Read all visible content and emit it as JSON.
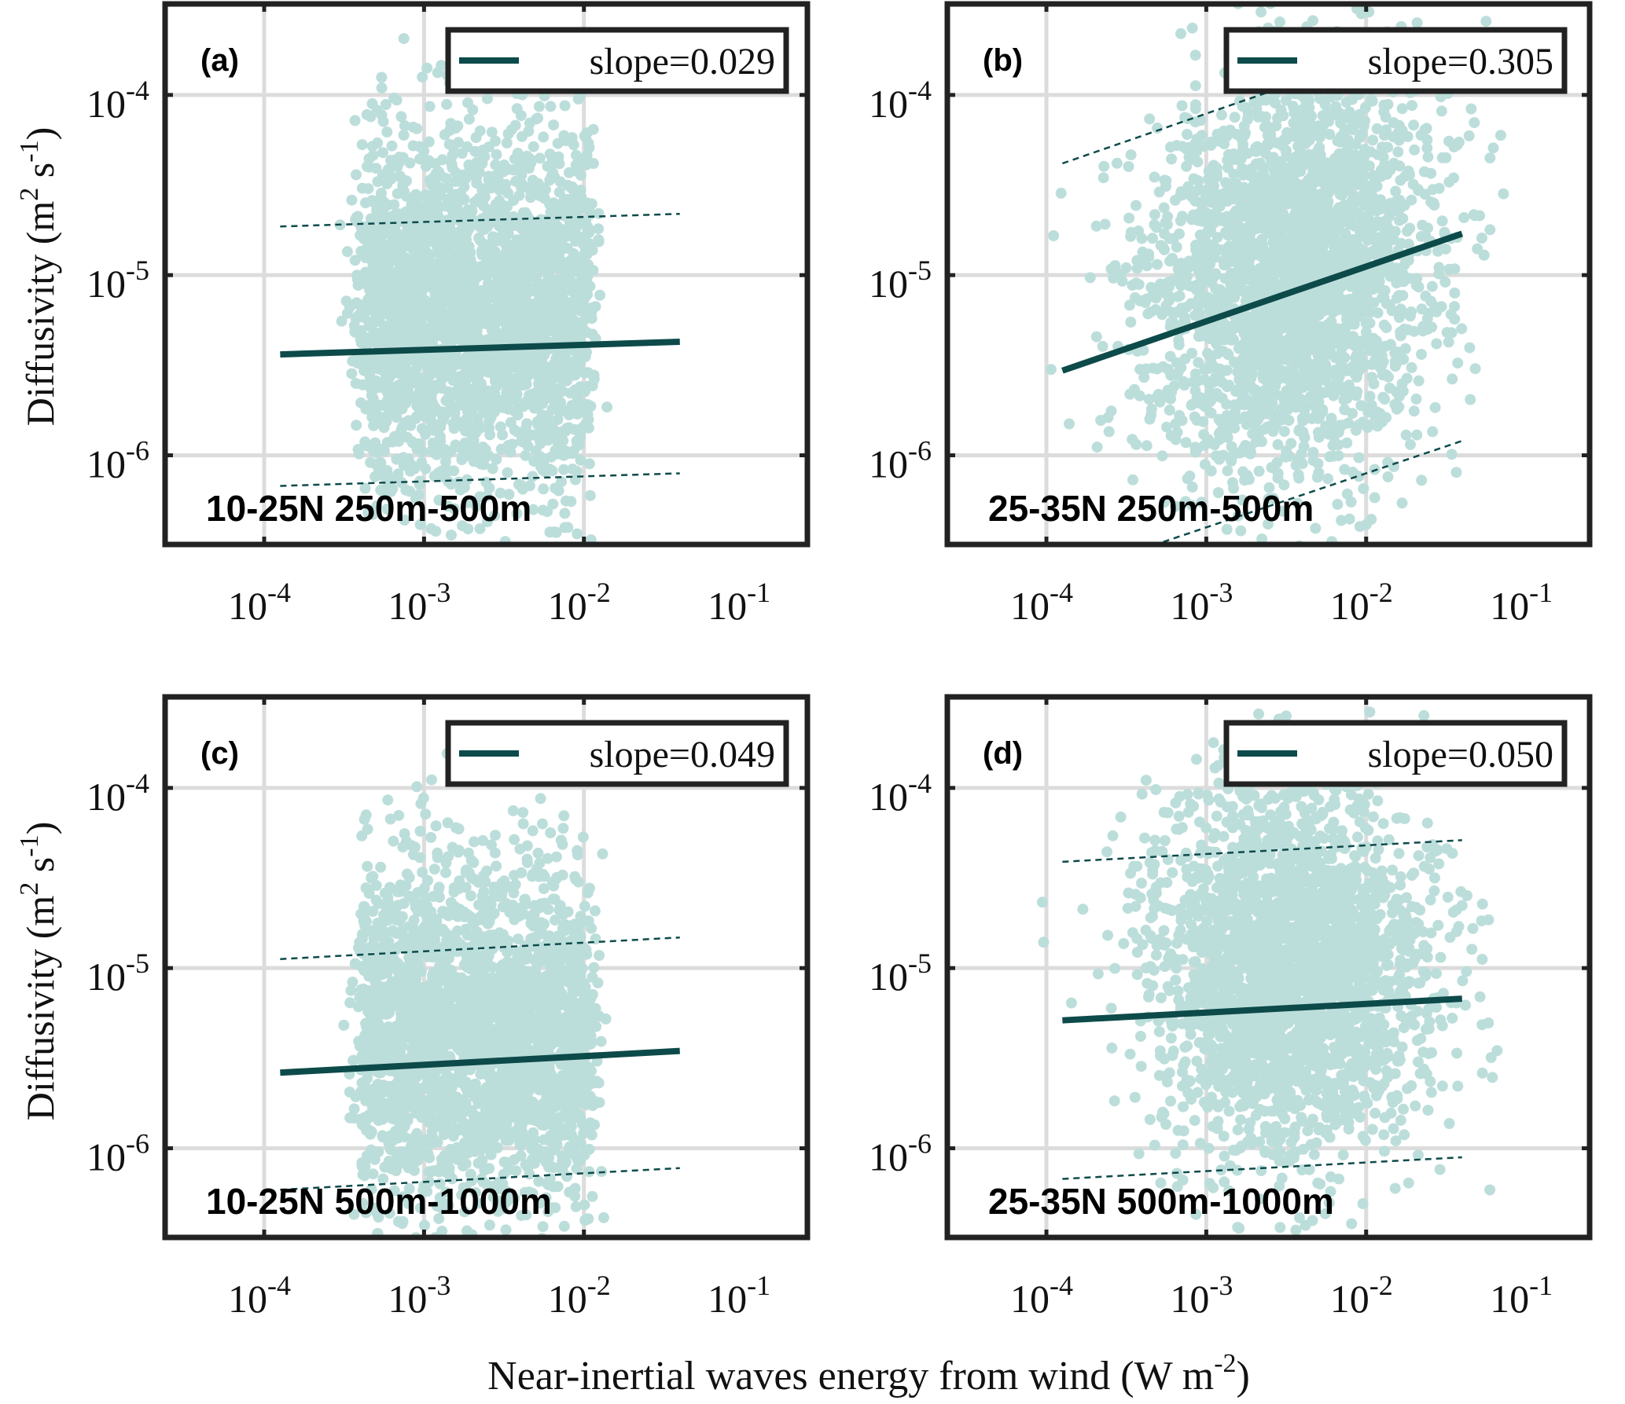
{
  "figure": {
    "ylabel_main": "Diffusivity (m",
    "ylabel_sup1": "2",
    "ylabel_mid": " s",
    "ylabel_sup2": "-1",
    "ylabel_end": ")",
    "xlabel_main": "Near-inertial waves energy from wind (W m",
    "xlabel_sup": "-2",
    "xlabel_end": ")"
  },
  "colors": {
    "scatter": "#bcdedb",
    "fit_line": "#0d4a4a",
    "grid": "#dcdcdc",
    "axes": "#222222"
  },
  "chart_data": [
    {
      "type": "scatter",
      "panel_label": "(a)",
      "region_label": "10-25N 250m-500m",
      "legend": "slope=0.029",
      "slope": 0.029,
      "xscale": "log",
      "yscale": "log",
      "xlim": [
        2.4e-05,
        0.25
      ],
      "ylim": [
        3.2e-07,
        0.00032
      ],
      "xticks": [
        "10-4",
        "10-3",
        "10-2",
        "10-1"
      ],
      "yticks": [
        "10-4",
        "10-5",
        "10-6"
      ],
      "x_cloud_log10": [
        -3.45,
        -1.9
      ],
      "y_cloud_log10": [
        -6.3,
        -4.05
      ],
      "fit": {
        "x_log10": [
          -3.9,
          -1.4
        ],
        "y_log10": [
          -5.44,
          -5.37
        ]
      },
      "upper_bound": {
        "x_log10": [
          -3.9,
          -1.4
        ],
        "y_log10": [
          -4.73,
          -4.66
        ]
      },
      "lower_bound": {
        "x_log10": [
          -3.9,
          -1.4
        ],
        "y_log10": [
          -6.17,
          -6.1
        ]
      },
      "grid": true,
      "legend_position": "top-right"
    },
    {
      "type": "scatter",
      "panel_label": "(b)",
      "region_label": "25-35N 250m-500m",
      "legend": "slope=0.305",
      "slope": 0.305,
      "xscale": "log",
      "yscale": "log",
      "xlim": [
        2.4e-05,
        0.25
      ],
      "ylim": [
        3.2e-07,
        0.00032
      ],
      "xticks": [
        "10-4",
        "10-3",
        "10-2",
        "10-1"
      ],
      "yticks": [
        "10-4",
        "10-5",
        "10-6"
      ],
      "x_cloud_log10": [
        -3.55,
        -1.4
      ],
      "y_cloud_log10": [
        -6.45,
        -3.55
      ],
      "fit": {
        "x_log10": [
          -3.9,
          -1.4
        ],
        "y_log10": [
          -5.53,
          -4.77
        ]
      },
      "upper_bound": {
        "x_log10": [
          -3.9,
          -2.5
        ],
        "y_log10": [
          -4.38,
          -3.95
        ]
      },
      "lower_bound": {
        "x_log10": [
          -3.4,
          -1.4
        ],
        "y_log10": [
          -6.52,
          -5.92
        ]
      },
      "grid": true,
      "legend_position": "top-right"
    },
    {
      "type": "scatter",
      "panel_label": "(c)",
      "region_label": "10-25N 500m-1000m",
      "legend": "slope=0.049",
      "slope": 0.049,
      "xscale": "log",
      "yscale": "log",
      "xlim": [
        2.4e-05,
        0.25
      ],
      "ylim": [
        3.2e-07,
        0.00032
      ],
      "xticks": [
        "10-4",
        "10-3",
        "10-2",
        "10-1"
      ],
      "yticks": [
        "10-4",
        "10-5",
        "10-6"
      ],
      "x_cloud_log10": [
        -3.45,
        -1.9
      ],
      "y_cloud_log10": [
        -6.4,
        -4.3
      ],
      "fit": {
        "x_log10": [
          -3.9,
          -1.4
        ],
        "y_log10": [
          -5.58,
          -5.46
        ]
      },
      "upper_bound": {
        "x_log10": [
          -3.9,
          -1.4
        ],
        "y_log10": [
          -4.95,
          -4.83
        ]
      },
      "lower_bound": {
        "x_log10": [
          -3.9,
          -1.4
        ],
        "y_log10": [
          -6.23,
          -6.11
        ]
      },
      "grid": true,
      "legend_position": "top-right"
    },
    {
      "type": "scatter",
      "panel_label": "(d)",
      "region_label": "25-35N 500m-1000m",
      "legend": "slope=0.050",
      "slope": 0.05,
      "xscale": "log",
      "yscale": "log",
      "xlim": [
        2.4e-05,
        0.25
      ],
      "ylim": [
        3.2e-07,
        0.00032
      ],
      "xticks": [
        "10-4",
        "10-3",
        "10-2",
        "10-1"
      ],
      "yticks": [
        "10-4",
        "10-5",
        "10-6"
      ],
      "x_cloud_log10": [
        -3.5,
        -1.45
      ],
      "y_cloud_log10": [
        -6.4,
        -3.6
      ],
      "fit": {
        "x_log10": [
          -3.9,
          -1.4
        ],
        "y_log10": [
          -5.29,
          -5.17
        ]
      },
      "upper_bound": {
        "x_log10": [
          -3.9,
          -1.4
        ],
        "y_log10": [
          -4.41,
          -4.29
        ]
      },
      "lower_bound": {
        "x_log10": [
          -3.9,
          -1.4
        ],
        "y_log10": [
          -6.17,
          -6.05
        ]
      },
      "grid": true,
      "legend_position": "top-right"
    }
  ]
}
